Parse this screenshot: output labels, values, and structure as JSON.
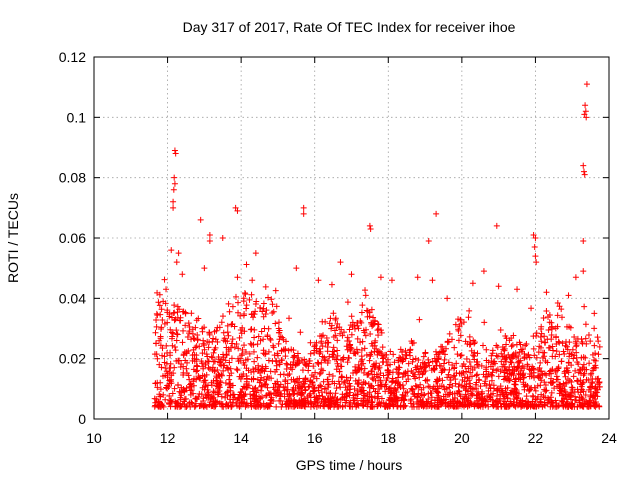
{
  "chart_data": {
    "type": "scatter",
    "title": "Day 317 of 2017, Rate Of TEC Index for receiver ihoe",
    "xlabel": "GPS time / hours",
    "ylabel": "ROTI / TECUs",
    "xlim": [
      10,
      24
    ],
    "ylim": [
      0,
      0.12
    ],
    "x_ticks": [
      10,
      12,
      14,
      16,
      18,
      20,
      22,
      24
    ],
    "x_tick_labels": [
      "10",
      "12",
      "14",
      "16",
      "18",
      "20",
      "22",
      "24"
    ],
    "y_ticks": [
      0,
      0.02,
      0.04,
      0.06,
      0.08,
      0.1,
      0.12
    ],
    "y_tick_labels": [
      "0",
      "0.02",
      "0.04",
      "0.06",
      "0.08",
      "0.1",
      "0.12"
    ],
    "grid": true,
    "marker": "+",
    "color": "#ff0000",
    "dense_band": {
      "x_range": [
        11.65,
        23.75
      ],
      "typical_y_range": [
        0.004,
        0.03
      ],
      "note": "thousands of points densely cover this band"
    },
    "points": [
      [
        12.2,
        0.089
      ],
      [
        12.22,
        0.088
      ],
      [
        12.18,
        0.08
      ],
      [
        12.2,
        0.078
      ],
      [
        12.17,
        0.076
      ],
      [
        12.15,
        0.072
      ],
      [
        12.15,
        0.07
      ],
      [
        12.9,
        0.066
      ],
      [
        13.15,
        0.061
      ],
      [
        13.15,
        0.059
      ],
      [
        13.5,
        0.06
      ],
      [
        13.85,
        0.07
      ],
      [
        13.9,
        0.069
      ],
      [
        15.7,
        0.07
      ],
      [
        15.7,
        0.068
      ],
      [
        17.5,
        0.064
      ],
      [
        17.52,
        0.063
      ],
      [
        19.3,
        0.068
      ],
      [
        19.1,
        0.059
      ],
      [
        20.95,
        0.064
      ],
      [
        21.95,
        0.061
      ],
      [
        22.0,
        0.06
      ],
      [
        21.98,
        0.057
      ],
      [
        22.0,
        0.054
      ],
      [
        22.02,
        0.052
      ],
      [
        23.4,
        0.111
      ],
      [
        23.35,
        0.104
      ],
      [
        23.37,
        0.102
      ],
      [
        23.33,
        0.101
      ],
      [
        23.38,
        0.1
      ],
      [
        23.3,
        0.084
      ],
      [
        23.32,
        0.082
      ],
      [
        23.34,
        0.081
      ],
      [
        23.3,
        0.059
      ],
      [
        23.1,
        0.047
      ],
      [
        23.3,
        0.049
      ],
      [
        12.1,
        0.056
      ],
      [
        12.3,
        0.055
      ],
      [
        12.25,
        0.052
      ],
      [
        12.4,
        0.048
      ],
      [
        13.0,
        0.05
      ],
      [
        13.9,
        0.047
      ],
      [
        14.4,
        0.055
      ],
      [
        14.3,
        0.046
      ],
      [
        15.5,
        0.05
      ],
      [
        16.1,
        0.046
      ],
      [
        16.7,
        0.052
      ],
      [
        17.0,
        0.048
      ],
      [
        17.8,
        0.047
      ],
      [
        18.1,
        0.046
      ],
      [
        18.8,
        0.047
      ],
      [
        19.2,
        0.046
      ],
      [
        20.3,
        0.045
      ],
      [
        20.6,
        0.049
      ],
      [
        21.0,
        0.044
      ],
      [
        21.5,
        0.043
      ],
      [
        22.3,
        0.042
      ],
      [
        22.9,
        0.041
      ],
      [
        23.6,
        0.035
      ],
      [
        19.6,
        0.04
      ]
    ]
  }
}
